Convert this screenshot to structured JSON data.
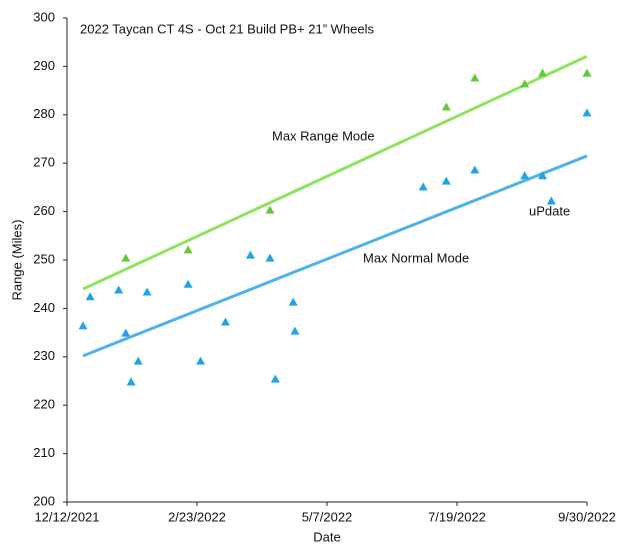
{
  "chart_data": {
    "type": "scatter",
    "title": "2022 Taycan CT 4S - Oct 21 Build PB+ 21” Wheels",
    "x_label": "Date",
    "y_label": "Range (Miles)",
    "xlim": [
      "2021-12-12",
      "2022-09-30"
    ],
    "xticks": [
      {
        "value": "2021-12-12",
        "label": "12/12/2021"
      },
      {
        "value": "2022-02-23",
        "label": "2/23/2022"
      },
      {
        "value": "2022-05-07",
        "label": "5/7/2022"
      },
      {
        "value": "2022-07-19",
        "label": "7/19/2022"
      },
      {
        "value": "2022-09-30",
        "label": "9/30/2022"
      }
    ],
    "ylim": [
      200,
      300
    ],
    "yticks": [
      200,
      210,
      220,
      230,
      240,
      250,
      260,
      270,
      280,
      290,
      300
    ],
    "grid": false,
    "series": [
      {
        "color": "#22a3e3",
        "x": [
          "2021-12-21",
          "2021-12-25",
          "2022-01-10",
          "2022-01-14",
          "2022-01-17",
          "2022-01-21",
          "2022-01-26",
          "2022-02-18",
          "2022-02-25",
          "2022-03-11",
          "2022-03-25",
          "2022-04-05",
          "2022-04-08",
          "2022-04-18",
          "2022-04-19",
          "2022-06-30",
          "2022-07-13",
          "2022-07-29",
          "2022-08-26",
          "2022-09-05",
          "2022-09-10",
          "2022-09-30"
        ],
        "values": [
          236.4,
          242.4,
          243.8,
          234.9,
          224.8,
          229.1,
          243.4,
          245,
          229.1,
          237.2,
          251,
          250.4,
          225.4,
          241.3,
          235.3,
          265.1,
          266.3,
          268.6,
          267.4,
          267.4,
          262.2,
          280.4
        ]
      },
      {
        "color": "#62c93a",
        "x": [
          "2022-01-14",
          "2022-02-18",
          "2022-04-05",
          "2022-07-13",
          "2022-07-29",
          "2022-08-26",
          "2022-09-05",
          "2022-09-30"
        ],
        "values": [
          250.4,
          252.1,
          260.3,
          281.6,
          287.6,
          286.4,
          288.6,
          288.6
        ]
      }
    ],
    "trendlines": [
      {
        "color": "#4eb3ea",
        "x": [
          "2021-12-21",
          "2022-09-30"
        ],
        "values": [
          230.2,
          271.5
        ]
      },
      {
        "color": "#8fe35c",
        "x": [
          "2021-12-21",
          "2022-09-30"
        ],
        "values": [
          244.0,
          292.1
        ]
      }
    ],
    "annotations": [
      "Max Range Mode",
      "Max Normal Mode",
      "uPdate"
    ]
  }
}
